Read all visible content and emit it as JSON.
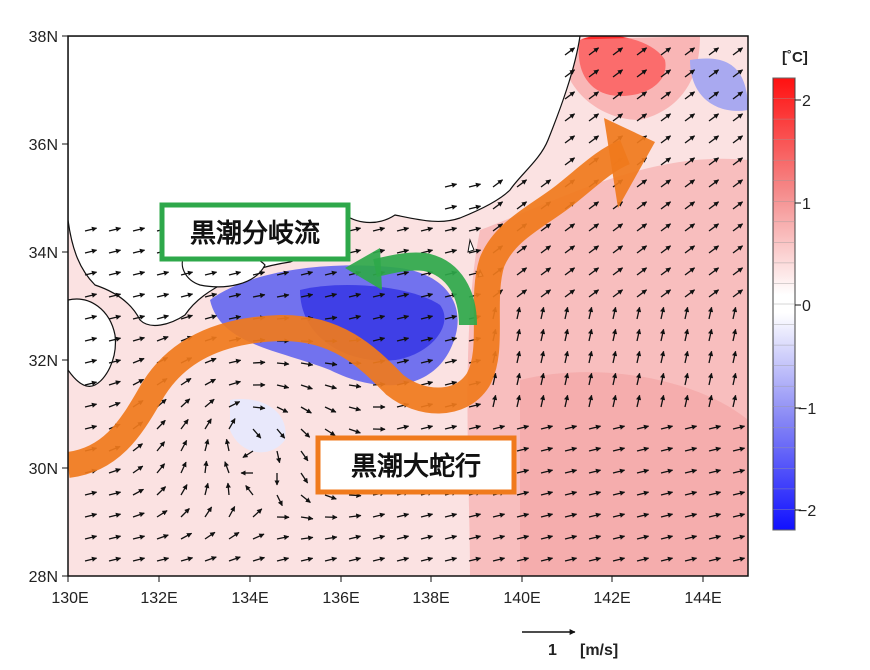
{
  "map": {
    "x_ticks": [
      "130E",
      "132E",
      "134E",
      "136E",
      "138E",
      "140E",
      "142E",
      "144E"
    ],
    "y_ticks": [
      "38N",
      "36N",
      "34N",
      "32N",
      "30N",
      "28N"
    ],
    "lon_range": [
      130,
      145
    ],
    "lat_range": [
      28,
      38
    ]
  },
  "annotations": {
    "branch_label": "黒潮分岐流",
    "meander_label": "黒潮大蛇行"
  },
  "colorbar": {
    "unit": "[˚C]",
    "ticks": [
      "2",
      "1",
      "0",
      "−1",
      "−2"
    ],
    "colors": {
      "max": "#ff1a1a",
      "zero": "#ffffff",
      "min": "#1a1aff"
    }
  },
  "reference_vector": {
    "value": "1",
    "unit": "[m/s]"
  },
  "colors": {
    "arrow_orange": "#f07a1c",
    "arrow_green": "#2ea84a",
    "box_green": "#2ea84a",
    "box_orange": "#f07a1c"
  }
}
